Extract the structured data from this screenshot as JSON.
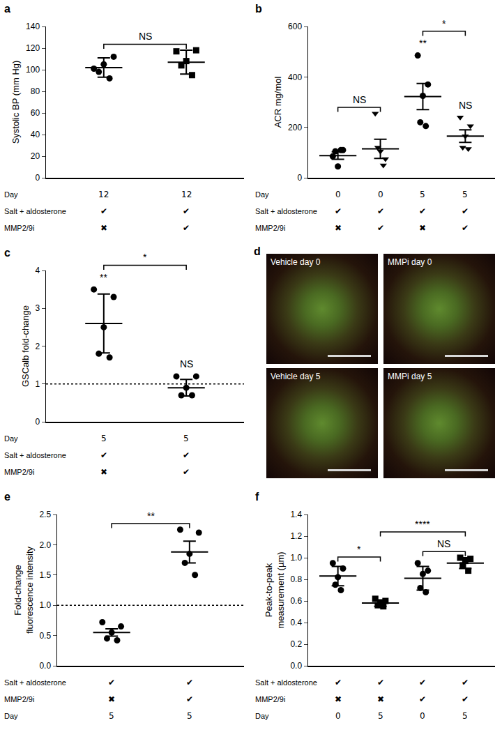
{
  "chart_data": [
    {
      "panel": "a",
      "type": "scatter",
      "color": "#000000",
      "grid": false,
      "ylabel": [
        "Systolic BP (mm Hg)"
      ],
      "ylim": [
        0,
        140
      ],
      "yticks": [
        0,
        20,
        40,
        60,
        80,
        100,
        120,
        140
      ],
      "groups": [
        {
          "marker": "circle",
          "values": [
            101,
            112,
            105,
            98,
            92
          ],
          "mean": 102,
          "error": 9
        },
        {
          "marker": "square",
          "values": [
            117,
            118,
            108,
            104,
            95
          ],
          "mean": 107,
          "error": 11
        }
      ],
      "comparisons": [
        {
          "groups": [
            0,
            1
          ],
          "label": "NS"
        }
      ],
      "group_labels": [],
      "conditions": [
        {
          "label": "Day",
          "values": [
            "12",
            "12"
          ]
        },
        {
          "label": "Salt + aldosterone",
          "values": [
            "✔",
            "✔"
          ]
        },
        {
          "label": "MMP2/9i",
          "values": [
            "✖",
            "✔"
          ]
        }
      ]
    },
    {
      "panel": "b",
      "type": "scatter",
      "color": "#000000",
      "grid": false,
      "ylabel": [
        "ACR mg/mol"
      ],
      "ylim": [
        0,
        600
      ],
      "yticks": [
        0,
        200,
        400,
        600
      ],
      "groups": [
        {
          "marker": "circle",
          "values": [
            85,
            110,
            45,
            105,
            110
          ],
          "mean": 88,
          "error": 15
        },
        {
          "marker": "triangle-down",
          "values": [
            255,
            75,
            105,
            120,
            50
          ],
          "mean": 115,
          "error": 38
        },
        {
          "marker": "circle",
          "values": [
            485,
            370,
            325,
            220,
            205
          ],
          "mean": 322,
          "error": 52
        },
        {
          "marker": "triangle-down",
          "values": [
            240,
            205,
            165,
            120,
            115
          ],
          "mean": 165,
          "error": 25
        }
      ],
      "comparisons": [
        {
          "groups": [
            0,
            1
          ],
          "label": "NS"
        },
        {
          "groups": [
            2,
            3
          ],
          "label": "*"
        }
      ],
      "group_labels": [
        {
          "group": 2,
          "label": "**"
        },
        {
          "group": 3,
          "label": "NS"
        }
      ],
      "conditions": [
        {
          "label": "Day",
          "values": [
            "0",
            "0",
            "5",
            "5"
          ]
        },
        {
          "label": "Salt + aldosterone",
          "values": [
            "✔",
            "✔",
            "✔",
            "✔"
          ]
        },
        {
          "label": "MMP2/9i",
          "values": [
            "✖",
            "✔",
            "✖",
            "✔"
          ]
        }
      ]
    },
    {
      "panel": "c",
      "type": "scatter",
      "color": "#000000",
      "grid": false,
      "ylabel": [
        "GSCalb fold-change"
      ],
      "ylim": [
        0,
        4
      ],
      "yticks": [
        0,
        1,
        2,
        3,
        4
      ],
      "reference_line": 1,
      "groups": [
        {
          "marker": "circle",
          "values": [
            3.5,
            3.3,
            2.5,
            1.8,
            1.7
          ],
          "mean": 2.6,
          "error": 0.78
        },
        {
          "marker": "circle",
          "values": [
            1.2,
            1.2,
            0.9,
            0.7,
            0.7
          ],
          "mean": 0.9,
          "error": 0.22
        }
      ],
      "comparisons": [
        {
          "groups": [
            0,
            1
          ],
          "label": "*"
        }
      ],
      "group_labels": [
        {
          "group": 0,
          "label": "**"
        },
        {
          "group": 1,
          "label": "NS"
        }
      ],
      "conditions": [
        {
          "label": "Day",
          "values": [
            "5",
            "5"
          ]
        },
        {
          "label": "Salt + aldosterone",
          "values": [
            "✔",
            "✔"
          ]
        },
        {
          "label": "MMP2/9i",
          "values": [
            "✖",
            "✔"
          ]
        }
      ]
    },
    {
      "panel": "d",
      "type": "image",
      "images": [
        {
          "label": "Vehicle day 0"
        },
        {
          "label": "MMPi day 0"
        },
        {
          "label": "Vehicle day 5"
        },
        {
          "label": "MMPi day 5"
        }
      ]
    },
    {
      "panel": "e",
      "type": "scatter",
      "color": "#000000",
      "grid": false,
      "ylabel": [
        "Fold-change",
        "fluorescence intensity"
      ],
      "ylim": [
        0,
        2.5
      ],
      "yticks": [
        {
          "value": 0,
          "label": "0.0"
        },
        {
          "value": 0.5,
          "label": "0.5"
        },
        {
          "value": 1,
          "label": "1.0"
        },
        {
          "value": 1.5,
          "label": "1.5"
        },
        {
          "value": 2,
          "label": "2.0"
        },
        {
          "value": 2.5,
          "label": "2.5"
        }
      ],
      "reference_line": 1,
      "groups": [
        {
          "marker": "circle",
          "values": [
            0.72,
            0.65,
            0.55,
            0.45,
            0.42
          ],
          "mean": 0.55,
          "error": 0.06
        },
        {
          "marker": "circle",
          "values": [
            2.25,
            2.2,
            1.85,
            1.7,
            1.5
          ],
          "mean": 1.88,
          "error": 0.18
        }
      ],
      "comparisons": [
        {
          "groups": [
            0,
            1
          ],
          "label": "**"
        }
      ],
      "group_labels": [],
      "conditions": [
        {
          "label": "Salt + aldosterone",
          "values": [
            "✔",
            "✔"
          ]
        },
        {
          "label": "MMP2/9i",
          "values": [
            "✖",
            "✔"
          ]
        },
        {
          "label": "Day",
          "values": [
            "5",
            "5"
          ]
        }
      ]
    },
    {
      "panel": "f",
      "type": "scatter",
      "color": "#000000",
      "grid": false,
      "ylabel": [
        "Peak-to-peak",
        "measurement (µm)"
      ],
      "ylim": [
        0,
        1.4
      ],
      "yticks": [
        {
          "value": 0,
          "label": "0.0"
        },
        {
          "value": 0.2,
          "label": "0.2"
        },
        {
          "value": 0.4,
          "label": "0.4"
        },
        {
          "value": 0.6,
          "label": "0.6"
        },
        {
          "value": 0.8,
          "label": "0.8"
        },
        {
          "value": 1,
          "label": "1.0"
        },
        {
          "value": 1.2,
          "label": "1.2"
        },
        {
          "value": 1.4,
          "label": "1.4"
        }
      ],
      "groups": [
        {
          "marker": "circle",
          "values": [
            0.95,
            0.9,
            0.82,
            0.75,
            0.7
          ],
          "mean": 0.83,
          "error": 0.09
        },
        {
          "marker": "square",
          "values": [
            0.62,
            0.6,
            0.58,
            0.56,
            0.55
          ],
          "mean": 0.58,
          "error": 0.03
        },
        {
          "marker": "circle",
          "values": [
            0.95,
            0.88,
            0.85,
            0.72,
            0.68
          ],
          "mean": 0.81,
          "error": 0.11
        },
        {
          "marker": "square",
          "values": [
            1.0,
            0.99,
            0.97,
            0.93,
            0.88
          ],
          "mean": 0.95,
          "error": 0.05
        }
      ],
      "comparisons": [
        {
          "groups": [
            0,
            1
          ],
          "label": "*"
        },
        {
          "groups": [
            2,
            3
          ],
          "label": "NS"
        },
        {
          "groups": [
            1,
            3
          ],
          "label": "****"
        }
      ],
      "group_labels": [],
      "conditions": [
        {
          "label": "Salt + aldosterone",
          "values": [
            "✔",
            "✔",
            "✔",
            "✔"
          ]
        },
        {
          "label": "MMP2/9i",
          "values": [
            "✖",
            "✖",
            "✔",
            "✔"
          ]
        },
        {
          "label": "Day",
          "values": [
            "0",
            "5",
            "0",
            "5"
          ]
        }
      ]
    }
  ]
}
